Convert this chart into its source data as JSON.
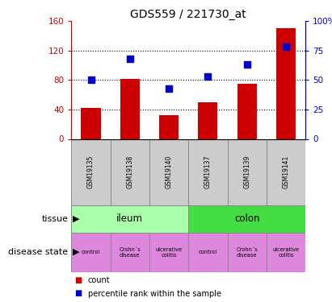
{
  "title": "GDS559 / 221730_at",
  "samples": [
    "GSM19135",
    "GSM19138",
    "GSM19140",
    "GSM19137",
    "GSM19139",
    "GSM19141"
  ],
  "counts": [
    42,
    82,
    32,
    50,
    75,
    150
  ],
  "percentiles": [
    50,
    68,
    43,
    53,
    63,
    78
  ],
  "ylim_left": [
    0,
    160
  ],
  "ylim_right": [
    0,
    100
  ],
  "yticks_left": [
    0,
    40,
    80,
    120,
    160
  ],
  "yticks_right": [
    0,
    25,
    50,
    75,
    100
  ],
  "ytick_labels_left": [
    "0",
    "40",
    "80",
    "120",
    "160"
  ],
  "ytick_labels_right": [
    "0",
    "25",
    "50",
    "75",
    "100%"
  ],
  "bar_color": "#cc0000",
  "dot_color": "#0000cc",
  "sample_box_color": "#cccccc",
  "tissue_ileum_color": "#aaffaa",
  "tissue_colon_color": "#44dd44",
  "disease_color": "#dd88dd",
  "legend_count_color": "#cc0000",
  "legend_pct_color": "#0000cc",
  "gridline_color": "black",
  "gridline_style": ":"
}
